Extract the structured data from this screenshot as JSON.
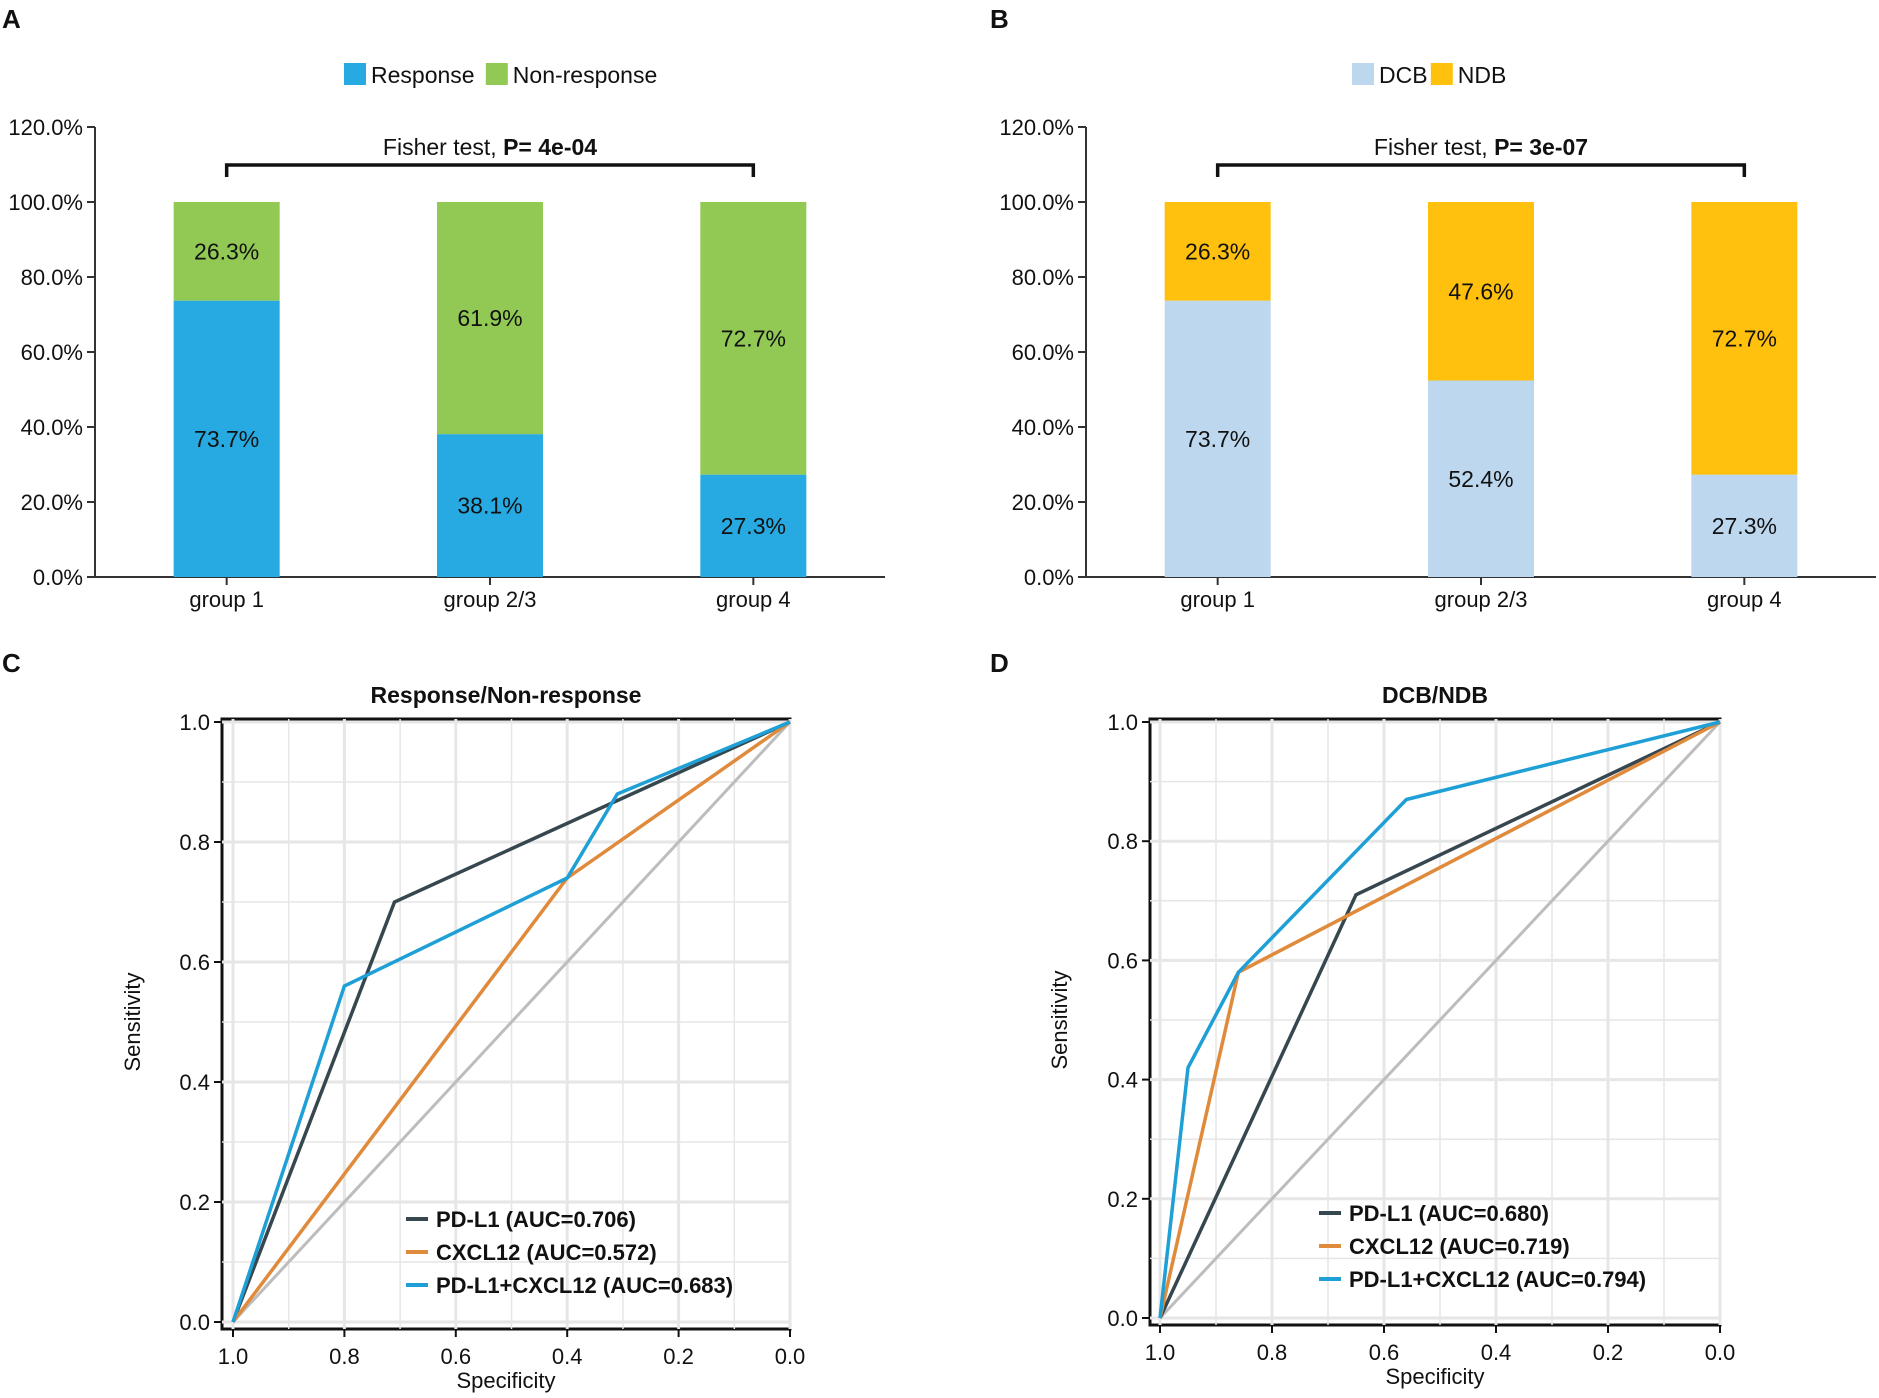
{
  "panels": {
    "a": "A",
    "b": "B",
    "c": "C",
    "d": "D"
  },
  "chart_data": [
    {
      "id": "A",
      "type": "bar",
      "stacked": true,
      "categories": [
        "group 1",
        "group 2/3",
        "group 4"
      ],
      "series": [
        {
          "name": "Response",
          "color": "#27AAE1",
          "values": [
            73.7,
            38.1,
            27.3
          ],
          "labels": [
            "73.7%",
            "38.1%",
            "27.3%"
          ]
        },
        {
          "name": "Non-response",
          "color": "#92C954",
          "values": [
            26.3,
            61.9,
            72.7
          ],
          "labels": [
            "26.3%",
            "61.9%",
            "72.7%"
          ]
        }
      ],
      "yticks": [
        "0.0%",
        "20.0%",
        "40.0%",
        "60.0%",
        "80.0%",
        "100.0%",
        "120.0%"
      ],
      "ylim": [
        0,
        120
      ],
      "annotation": {
        "text": "Fisher test, ",
        "bold": "P= 4e-04"
      },
      "legend_position": "top"
    },
    {
      "id": "B",
      "type": "bar",
      "stacked": true,
      "categories": [
        "group 1",
        "group 2/3",
        "group 4"
      ],
      "series": [
        {
          "name": "DCB",
          "color": "#BDD7EE",
          "values": [
            73.7,
            52.4,
            27.3
          ],
          "labels": [
            "73.7%",
            "52.4%",
            "27.3%"
          ]
        },
        {
          "name": "NDB",
          "color": "#FFC10E",
          "values": [
            26.3,
            47.6,
            72.7
          ],
          "labels": [
            "26.3%",
            "47.6%",
            "72.7%"
          ]
        }
      ],
      "yticks": [
        "0.0%",
        "20.0%",
        "40.0%",
        "60.0%",
        "80.0%",
        "100.0%",
        "120.0%"
      ],
      "ylim": [
        0,
        120
      ],
      "annotation": {
        "text": "Fisher test, ",
        "bold": "P= 3e-07"
      },
      "legend_position": "top"
    },
    {
      "id": "C",
      "type": "line",
      "title": "Response/Non-response",
      "xlabel": "Specificity",
      "ylabel": "Sensitivity",
      "xlim": [
        1.0,
        0.0
      ],
      "ylim": [
        0.0,
        1.0
      ],
      "xticks": [
        "1.0",
        "0.8",
        "0.6",
        "0.4",
        "0.2",
        "0.0"
      ],
      "yticks": [
        "0.0",
        "0.2",
        "0.4",
        "0.6",
        "0.8",
        "1.0"
      ],
      "grid": true,
      "legend_position": "bottom-right",
      "series": [
        {
          "name": "PD-L1 (AUC=0.706)",
          "color": "#37474F",
          "points": [
            [
              1.0,
              0.0
            ],
            [
              0.71,
              0.7
            ],
            [
              0.0,
              1.0
            ]
          ]
        },
        {
          "name": "CXCL12 (AUC=0.572)",
          "color": "#E08A3C",
          "points": [
            [
              1.0,
              0.0
            ],
            [
              0.4,
              0.74
            ],
            [
              0.0,
              1.0
            ]
          ]
        },
        {
          "name": "PD-L1+CXCL12 (AUC=0.683)",
          "color": "#1EA0D6",
          "points": [
            [
              1.0,
              0.0
            ],
            [
              0.8,
              0.56
            ],
            [
              0.4,
              0.74
            ],
            [
              0.31,
              0.88
            ],
            [
              0.0,
              1.0
            ]
          ]
        }
      ],
      "reference_line": {
        "color": "#BDBDBD",
        "points": [
          [
            1.0,
            0.0
          ],
          [
            0.0,
            1.0
          ]
        ]
      }
    },
    {
      "id": "D",
      "type": "line",
      "title": "DCB/NDB",
      "xlabel": "Specificity",
      "ylabel": "Sensitivity",
      "xlim": [
        1.0,
        0.0
      ],
      "ylim": [
        0.0,
        1.0
      ],
      "xticks": [
        "1.0",
        "0.8",
        "0.6",
        "0.4",
        "0.2",
        "0.0"
      ],
      "yticks": [
        "0.0",
        "0.2",
        "0.4",
        "0.6",
        "0.8",
        "1.0"
      ],
      "grid": true,
      "legend_position": "bottom-right",
      "series": [
        {
          "name": "PD-L1 (AUC=0.680)",
          "color": "#37474F",
          "points": [
            [
              1.0,
              0.0
            ],
            [
              0.65,
              0.71
            ],
            [
              0.0,
              1.0
            ]
          ]
        },
        {
          "name": "CXCL12 (AUC=0.719)",
          "color": "#E08A3C",
          "points": [
            [
              1.0,
              0.0
            ],
            [
              0.86,
              0.58
            ],
            [
              0.0,
              1.0
            ]
          ]
        },
        {
          "name": "PD-L1+CXCL12 (AUC=0.794)",
          "color": "#1EA0D6",
          "points": [
            [
              1.0,
              0.0
            ],
            [
              0.95,
              0.42
            ],
            [
              0.86,
              0.58
            ],
            [
              0.56,
              0.87
            ],
            [
              0.0,
              1.0
            ]
          ]
        }
      ],
      "reference_line": {
        "color": "#BDBDBD",
        "points": [
          [
            1.0,
            0.0
          ],
          [
            0.0,
            1.0
          ]
        ]
      }
    }
  ]
}
